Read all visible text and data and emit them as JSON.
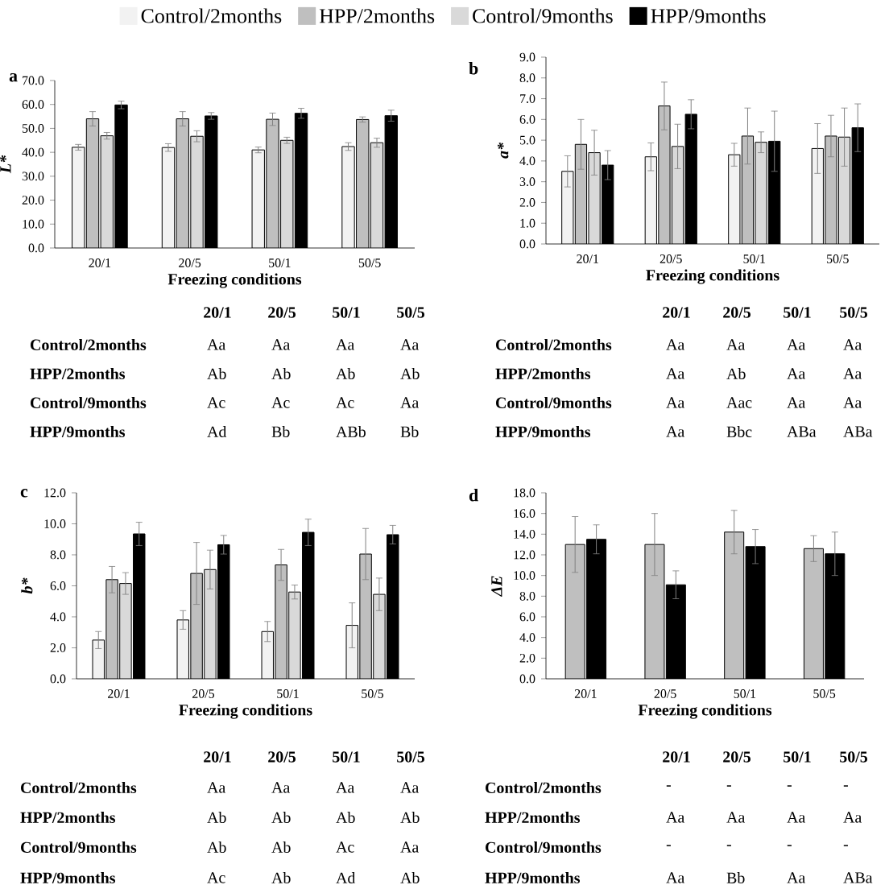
{
  "chart_data": [
    {
      "type": "bar",
      "title": "a",
      "xlabel": "Freezing conditions",
      "ylabel": "L*",
      "categories": [
        "20/1",
        "20/5",
        "50/1",
        "50/5"
      ],
      "legend": "top",
      "ylim": [
        0,
        70
      ],
      "yticks": [
        {
          "value": 0,
          "label": "0.0"
        },
        {
          "value": 10,
          "label": "10.0"
        },
        {
          "value": 20,
          "label": "20.0"
        },
        {
          "value": 30,
          "label": "30.0"
        },
        {
          "value": 40,
          "label": "40.0"
        },
        {
          "value": 50,
          "label": "50.0"
        },
        {
          "value": 60,
          "label": "60.0"
        },
        {
          "value": 70,
          "label": "70.0"
        }
      ],
      "series": [
        {
          "name": "Control/2months",
          "color": "#f2f2f2",
          "values": [
            42.1,
            42.0,
            41.0,
            42.4
          ],
          "errors": [
            1.2,
            1.6,
            1.2,
            1.6
          ]
        },
        {
          "name": "HPP/2months",
          "color": "#bfbfbf",
          "values": [
            54.0,
            54.0,
            53.8,
            53.7
          ],
          "errors": [
            3.0,
            3.0,
            2.6,
            1.1
          ]
        },
        {
          "name": "Control/9months",
          "color": "#d9d9d9",
          "values": [
            46.9,
            46.7,
            45.0,
            44.0
          ],
          "errors": [
            1.4,
            2.3,
            1.3,
            1.9
          ]
        },
        {
          "name": "HPP/9months",
          "color": "#000000",
          "values": [
            59.8,
            55.2,
            56.3,
            55.3
          ],
          "errors": [
            1.6,
            1.4,
            2.1,
            2.3
          ]
        }
      ],
      "annotations": [
        "Control/2months",
        "HPP/2months",
        "Control/9months",
        "HPP/9months",
        "Aa",
        "Aa",
        "Aa",
        "Aa",
        "Ab",
        "Ab",
        "Ab",
        "Ab",
        "Ac",
        "Ac",
        "Ac",
        "Aa",
        "Ad",
        "Bb",
        "ABb",
        "Bb"
      ]
    },
    {
      "type": "bar",
      "title": "b",
      "xlabel": "Freezing conditions",
      "ylabel": "a*",
      "categories": [
        "20/1",
        "20/5",
        "50/1",
        "50/5"
      ],
      "ylim": [
        0,
        9
      ],
      "yticks": [
        {
          "value": 0,
          "label": "0.0"
        },
        {
          "value": 1,
          "label": "1.0"
        },
        {
          "value": 2,
          "label": "2.0"
        },
        {
          "value": 3,
          "label": "3.0"
        },
        {
          "value": 4,
          "label": "4.0"
        },
        {
          "value": 5,
          "label": "5.0"
        },
        {
          "value": 6,
          "label": "6.0"
        },
        {
          "value": 7,
          "label": "7.0"
        },
        {
          "value": 8,
          "label": "8.0"
        },
        {
          "value": 9,
          "label": "9.0"
        }
      ],
      "series": [
        {
          "color": "#f2f2f2",
          "values": [
            3.5,
            4.2,
            4.3,
            4.6
          ],
          "errors": [
            0.75,
            0.67,
            0.55,
            1.2
          ]
        },
        {
          "color": "#bfbfbf",
          "values": [
            4.8,
            6.65,
            5.2,
            5.2
          ],
          "errors": [
            1.2,
            1.15,
            1.35,
            1.0
          ]
        },
        {
          "color": "#d9d9d9",
          "values": [
            4.4,
            4.7,
            4.9,
            5.15
          ],
          "errors": [
            1.08,
            1.07,
            0.5,
            1.4
          ]
        },
        {
          "color": "#000000",
          "values": [
            3.8,
            6.25,
            4.95,
            5.6
          ],
          "errors": [
            0.7,
            0.7,
            1.45,
            1.15
          ]
        }
      ],
      "annotations": [
        "Control/2months",
        "HPP/2months",
        "Control/9months",
        "HPP/9months",
        "Aa",
        "Aa",
        "Aa",
        "Aa",
        "Aa",
        "Ab",
        "Aa",
        "Aa",
        "Aa",
        "Aac",
        "Aa",
        "Aa",
        "Aa",
        "Bbc",
        "ABa",
        "ABa"
      ]
    },
    {
      "type": "bar",
      "title": "c",
      "xlabel": "Freezing conditions",
      "ylabel": "b*",
      "categories": [
        "20/1",
        "20/5",
        "50/1",
        "50/5"
      ],
      "ylim": [
        0,
        12
      ],
      "yticks": [
        {
          "value": 0,
          "label": "0.0"
        },
        {
          "value": 2,
          "label": "2.0"
        },
        {
          "value": 4,
          "label": "4.0"
        },
        {
          "value": 6,
          "label": "6.0"
        },
        {
          "value": 8,
          "label": "8.0"
        },
        {
          "value": 10,
          "label": "10.0"
        },
        {
          "value": 12,
          "label": "12.0"
        }
      ],
      "series": [
        {
          "color": "#f2f2f2",
          "values": [
            2.5,
            3.8,
            3.05,
            3.45
          ],
          "errors": [
            0.55,
            0.6,
            0.65,
            1.45
          ]
        },
        {
          "color": "#bfbfbf",
          "values": [
            6.4,
            6.8,
            7.35,
            8.05
          ],
          "errors": [
            0.85,
            2.0,
            1.0,
            1.65
          ]
        },
        {
          "color": "#d9d9d9",
          "values": [
            6.15,
            7.05,
            5.6,
            5.45
          ],
          "errors": [
            0.7,
            1.25,
            0.45,
            1.05
          ]
        },
        {
          "color": "#000000",
          "values": [
            9.35,
            8.65,
            9.45,
            9.3
          ],
          "errors": [
            0.75,
            0.6,
            0.85,
            0.6
          ]
        }
      ],
      "annotations": [
        "Control/2months",
        "HPP/2months",
        "Control/9months",
        "HPP/9months",
        "Aa",
        "Aa",
        "Aa",
        "Aa",
        "Ab",
        "Ab",
        "Ab",
        "Ab",
        "Ab",
        "Ab",
        "Ac",
        "Aa",
        "Ac",
        "Ab",
        "Ad",
        "Ab"
      ]
    },
    {
      "type": "bar",
      "title": "d",
      "xlabel": "Freezing conditions",
      "ylabel": "ΔE",
      "categories": [
        "20/1",
        "20/5",
        "50/1",
        "50/5"
      ],
      "ylim": [
        0,
        18
      ],
      "yticks": [
        {
          "value": 0,
          "label": "0.0"
        },
        {
          "value": 2,
          "label": "2.0"
        },
        {
          "value": 4,
          "label": "4.0"
        },
        {
          "value": 6,
          "label": "6.0"
        },
        {
          "value": 8,
          "label": "8.0"
        },
        {
          "value": 10,
          "label": "10.0"
        },
        {
          "value": 12,
          "label": "12.0"
        },
        {
          "value": 14,
          "label": "14.0"
        },
        {
          "value": 16,
          "label": "16.0"
        },
        {
          "value": 18,
          "label": "18.0"
        }
      ],
      "series": [
        {
          "color": "#bfbfbf",
          "values": [
            13.0,
            13.0,
            14.2,
            12.6
          ],
          "errors": [
            2.7,
            3.0,
            2.1,
            1.25
          ]
        },
        {
          "color": "#000000",
          "values": [
            13.5,
            9.1,
            12.8,
            12.1
          ],
          "errors": [
            1.4,
            1.35,
            1.65,
            2.1
          ]
        }
      ],
      "annotations": [
        "Control/2months",
        "HPP/2months",
        "Control/9months",
        "HPP/9months",
        "-",
        "-",
        "-",
        "-",
        "Aa",
        "Aa",
        "Aa",
        "Aa",
        "-",
        "-",
        "-",
        "-",
        "Aa",
        "Bb",
        "Aa",
        "ABa"
      ]
    }
  ]
}
